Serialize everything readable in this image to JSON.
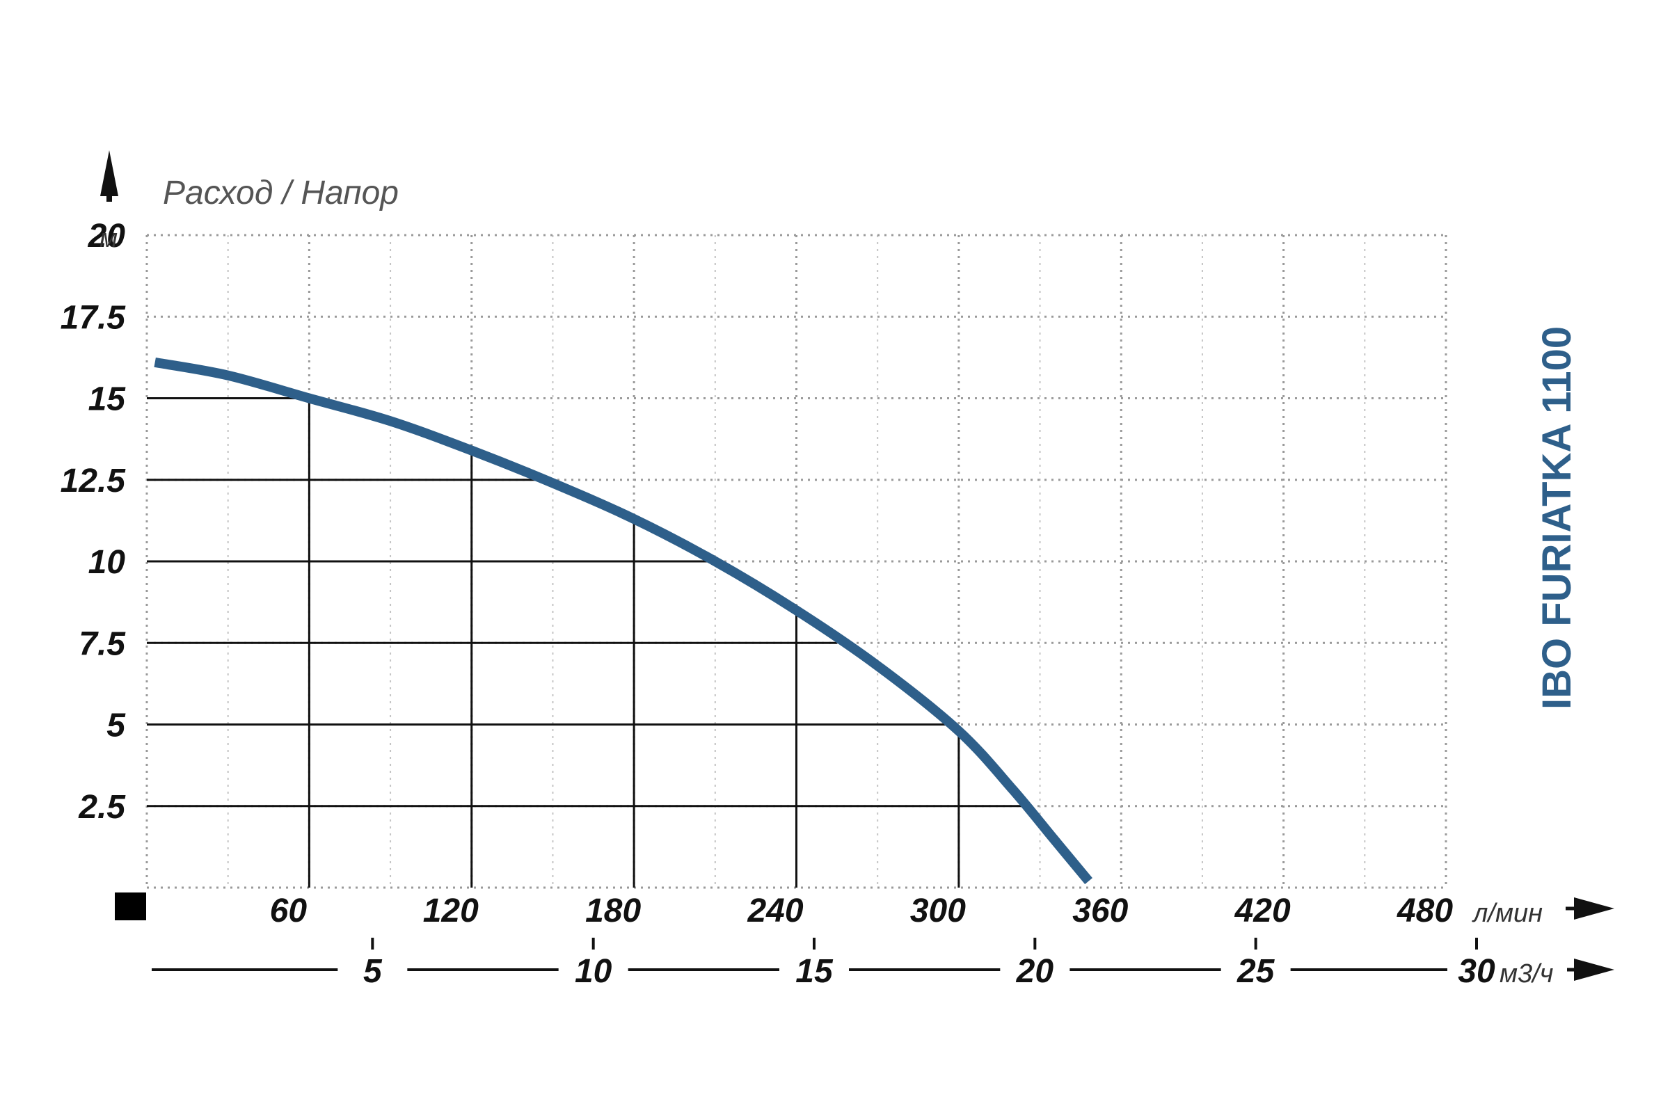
{
  "chart_data": {
    "type": "line",
    "title": "",
    "ylabel": "Расход / Напор",
    "y_unit": "м",
    "x_unit": "л/мин",
    "x2_unit": "м3/ч",
    "model_label": "IBO FURIATKA 1100",
    "xlim": [
      0,
      480
    ],
    "ylim": [
      0,
      20
    ],
    "grid": true,
    "y_ticks": [
      "20",
      "17.5",
      "15",
      "12.5",
      "10",
      "7.5",
      "5",
      "2.5"
    ],
    "y_tick_values": [
      20,
      17.5,
      15,
      12.5,
      10,
      7.5,
      5,
      2.5
    ],
    "x_ticks": [
      "60",
      "120",
      "180",
      "240",
      "300",
      "360",
      "420",
      "480"
    ],
    "x_tick_values": [
      60,
      120,
      180,
      240,
      300,
      360,
      420,
      480
    ],
    "x2_ticks": [
      "5",
      "10",
      "15",
      "20",
      "25",
      "30"
    ],
    "x2_tick_values": [
      5,
      10,
      15,
      20,
      25,
      30
    ],
    "series": [
      {
        "color": "#2e5f8a",
        "x": [
          3,
          30,
          60,
          90,
          120,
          150,
          180,
          210,
          240,
          270,
          300,
          320,
          335,
          348
        ],
        "y": [
          16.1,
          15.7,
          15.0,
          14.3,
          13.4,
          12.4,
          11.3,
          10.0,
          8.5,
          6.8,
          4.8,
          3.0,
          1.5,
          0.2
        ]
      }
    ],
    "operating_points": [
      {
        "x": 60,
        "y": 15.0
      },
      {
        "x": 120,
        "y": 13.4
      },
      {
        "x": 180,
        "y": 11.3
      },
      {
        "x": 240,
        "y": 8.5
      },
      {
        "x": 300,
        "y": 4.8
      }
    ],
    "y_reference_lines": [
      {
        "y": 15,
        "x": 60
      },
      {
        "y": 12.5,
        "x": 145
      },
      {
        "y": 10,
        "x": 207
      },
      {
        "y": 7.5,
        "x": 255
      },
      {
        "y": 5,
        "x": 295
      },
      {
        "y": 2.5,
        "x": 326
      }
    ]
  }
}
